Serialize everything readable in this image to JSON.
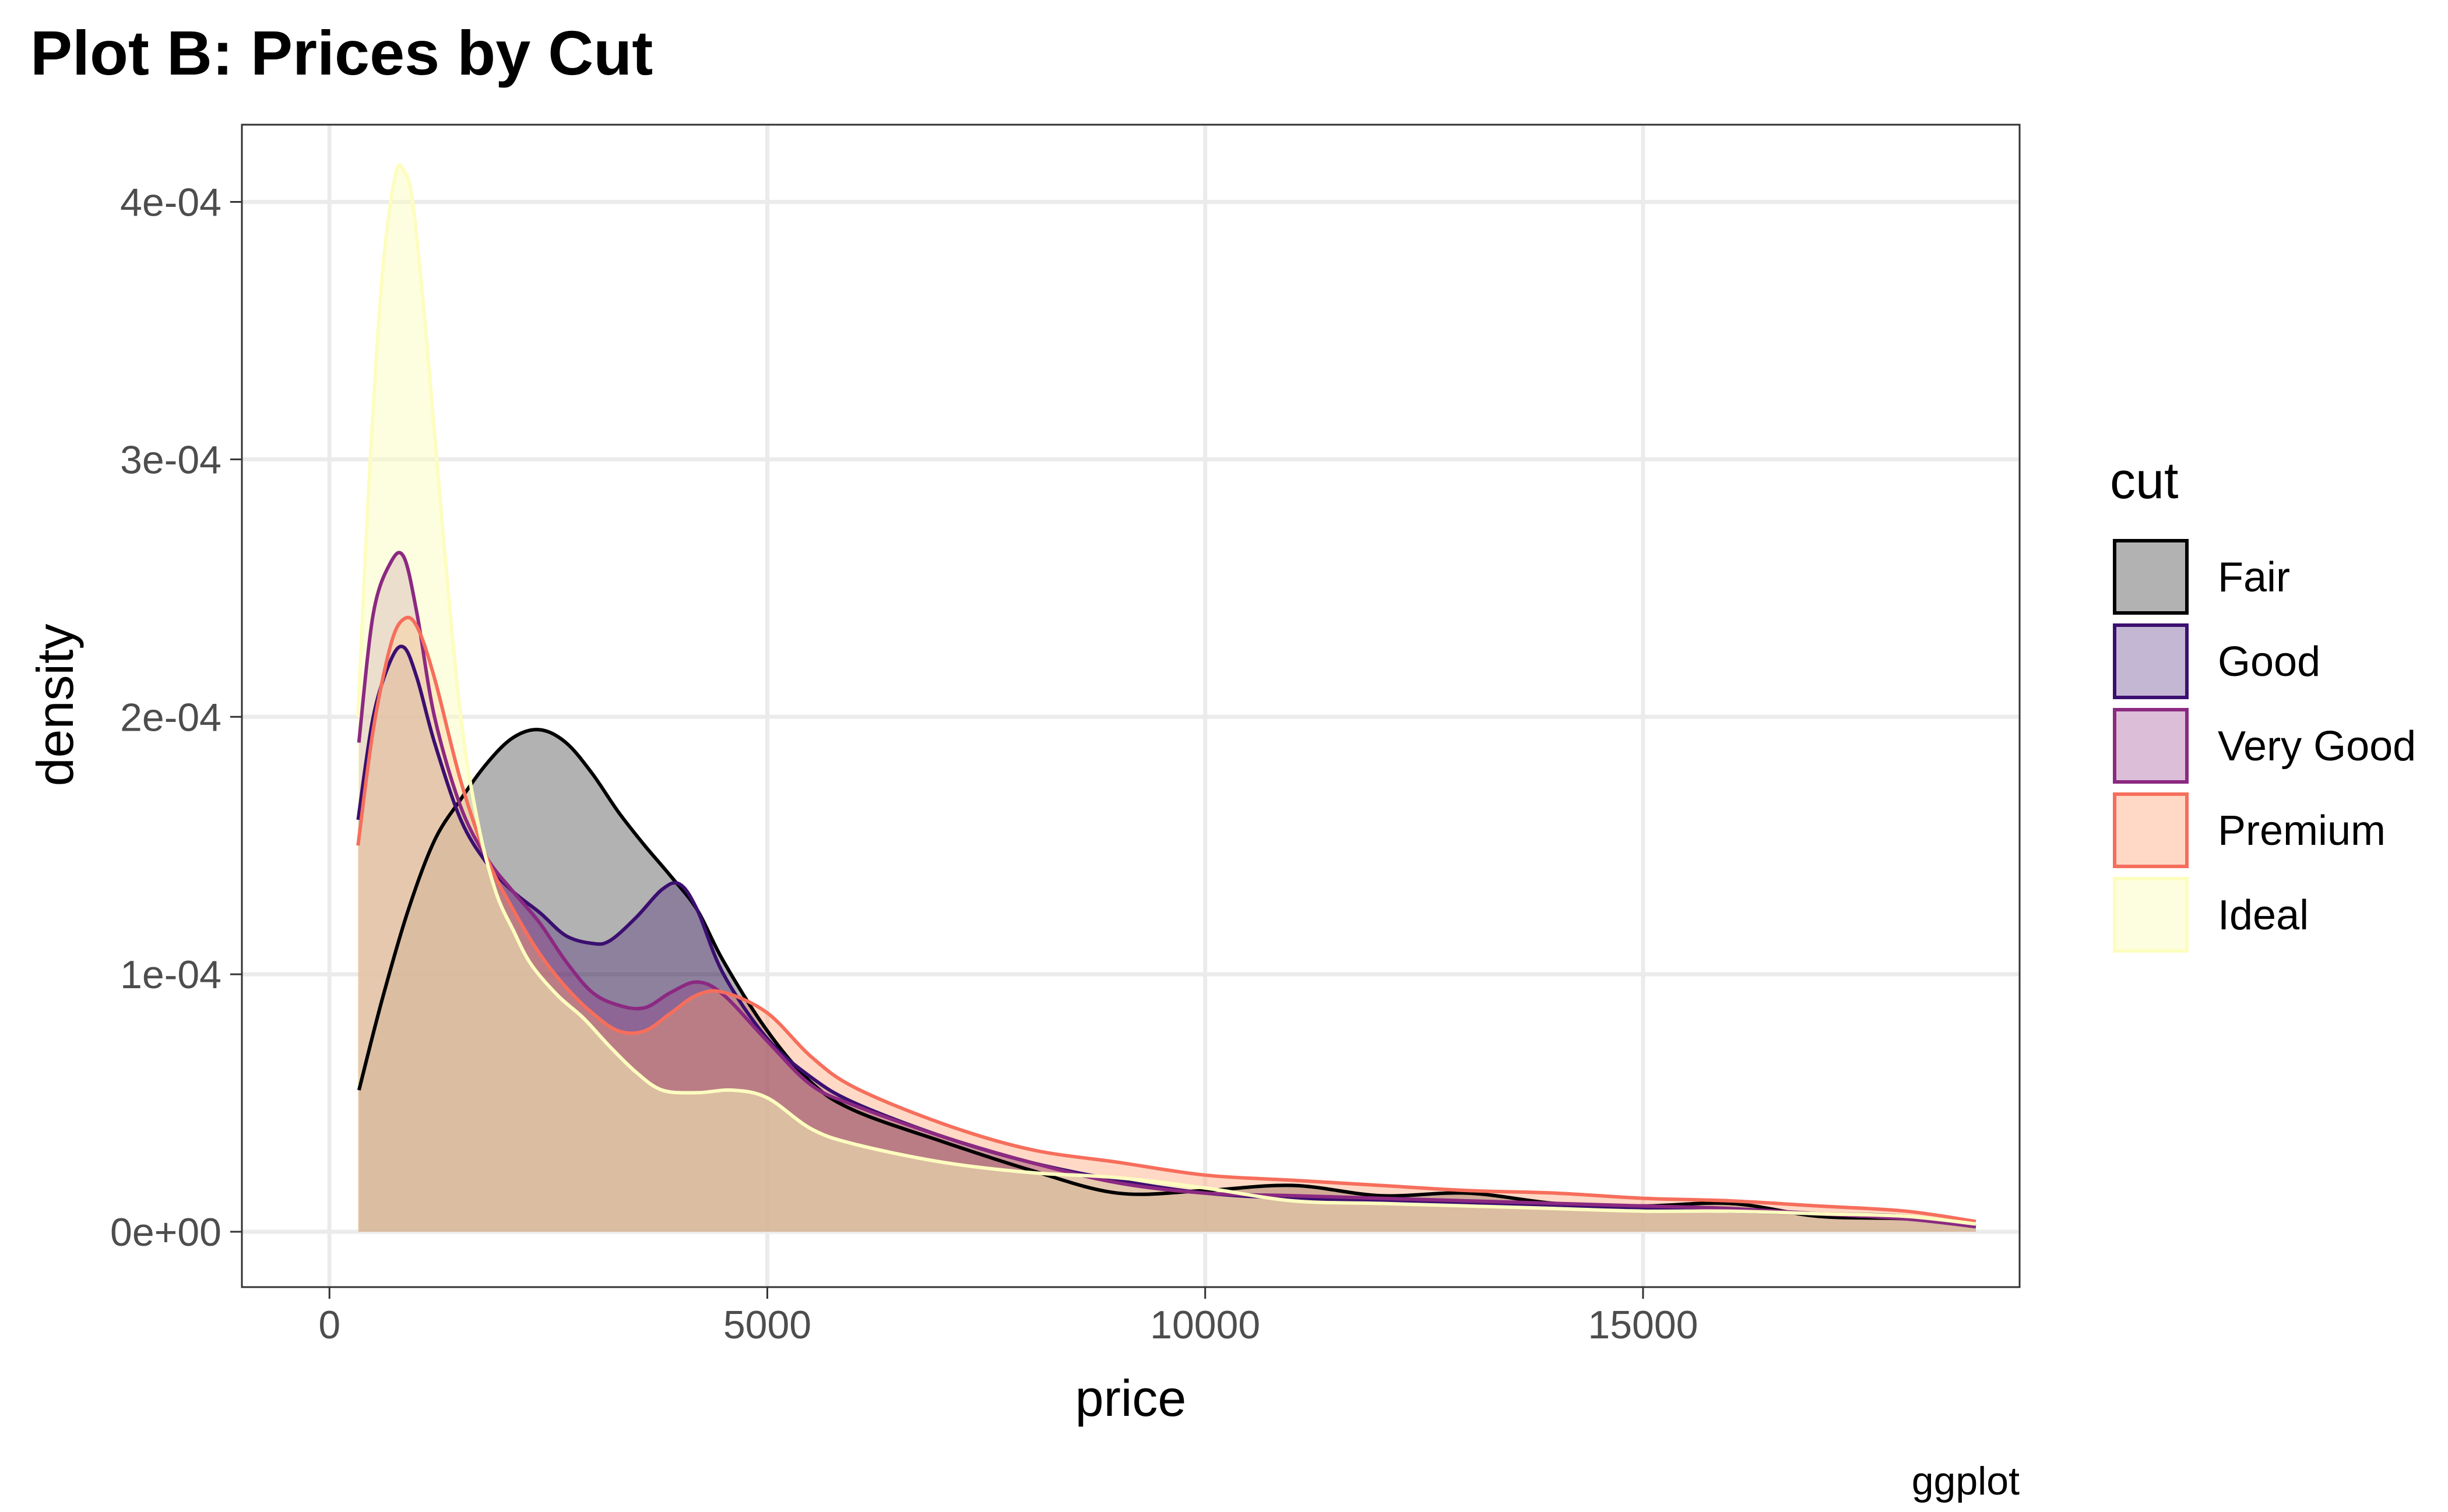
{
  "chart_data": {
    "type": "area",
    "title": "Plot B: Prices by Cut",
    "xlabel": "price",
    "ylabel": "density",
    "caption": "ggplot",
    "xlim": [
      -1000,
      19300
    ],
    "ylim": [
      -2.15e-05,
      0.00043
    ],
    "x_ticks": [
      0,
      5000,
      10000,
      15000
    ],
    "x_tick_labels": [
      "0",
      "5000",
      "10000",
      "15000"
    ],
    "y_ticks": [
      0,
      0.0001,
      0.0002,
      0.0003,
      0.0004
    ],
    "y_tick_labels": [
      "0e+00",
      "1e-04",
      "2e-04",
      "3e-04",
      "4e-04"
    ],
    "grid": true,
    "legend": {
      "title": "cut",
      "placement": "right"
    },
    "series": [
      {
        "name": "Fair",
        "line_color": "#000000",
        "fill_color": "#000000",
        "fill_opacity": 0.3,
        "x": [
          337,
          600,
          900,
          1200,
          1500,
          1800,
          2100,
          2400,
          2700,
          3000,
          3300,
          3600,
          3900,
          4200,
          4500,
          5000,
          5500,
          6000,
          7000,
          8000,
          9000,
          10000,
          11000,
          12000,
          13000,
          14000,
          15000,
          16000,
          17000,
          18000,
          18800
        ],
        "y": [
          5.5e-05,
          9e-05,
          0.000125,
          0.000152,
          0.000168,
          0.000182,
          0.000192,
          0.000195,
          0.00019,
          0.000178,
          0.000163,
          0.00015,
          0.000138,
          0.000125,
          0.000105,
          7.8e-05,
          5.8e-05,
          4.7e-05,
          3.5e-05,
          2.4e-05,
          1.5e-05,
          1.6e-05,
          1.8e-05,
          1.4e-05,
          1.5e-05,
          1.1e-05,
          1e-05,
          1.1e-05,
          6e-06,
          5e-06,
          2e-06
        ]
      },
      {
        "name": "Good",
        "line_color": "#3b0f70",
        "fill_color": "#3b0f70",
        "fill_opacity": 0.3,
        "x": [
          327,
          500,
          700,
          850,
          1000,
          1200,
          1500,
          1800,
          2100,
          2400,
          2700,
          3000,
          3200,
          3500,
          3800,
          4000,
          4200,
          4500,
          5000,
          5500,
          6000,
          7000,
          8000,
          9000,
          10000,
          11000,
          12000,
          13000,
          14000,
          15000,
          16000,
          17000,
          18000,
          18800
        ],
        "y": [
          0.00016,
          0.0002,
          0.000222,
          0.000227,
          0.000215,
          0.00019,
          0.00016,
          0.000143,
          0.000132,
          0.000124,
          0.000115,
          0.000112,
          0.000113,
          0.000122,
          0.000133,
          0.000135,
          0.000125,
          0.0001,
          7.5e-05,
          6e-05,
          5e-05,
          3.7e-05,
          2.7e-05,
          2e-05,
          1.5e-05,
          1.3e-05,
          1.2e-05,
          1.1e-05,
          1e-05,
          9e-06,
          8e-06,
          7e-06,
          6e-06,
          2e-06
        ]
      },
      {
        "name": "Very Good",
        "line_color": "#8c2981",
        "fill_color": "#8c2981",
        "fill_opacity": 0.3,
        "x": [
          336,
          500,
          700,
          850,
          1000,
          1200,
          1500,
          1800,
          2100,
          2400,
          2700,
          3000,
          3300,
          3600,
          3900,
          4200,
          4500,
          5000,
          5500,
          6000,
          7000,
          8000,
          9000,
          10000,
          11000,
          12000,
          13000,
          14000,
          15000,
          16000,
          17000,
          18000,
          18800
        ],
        "y": [
          0.00019,
          0.00024,
          0.00026,
          0.000262,
          0.00024,
          0.0002,
          0.000165,
          0.000145,
          0.000132,
          0.00012,
          0.000105,
          9.3e-05,
          8.8e-05,
          8.7e-05,
          9.3e-05,
          9.7e-05,
          9.2e-05,
          7.4e-05,
          5.7e-05,
          4.9e-05,
          3.7e-05,
          2.7e-05,
          1.9e-05,
          1.5e-05,
          1.4e-05,
          1.3e-05,
          1.2e-05,
          1.1e-05,
          1e-05,
          9e-06,
          7e-06,
          5e-06,
          2e-06
        ]
      },
      {
        "name": "Premium",
        "line_color": "#f66e5c",
        "fill_color": "#fe9f6d",
        "fill_opacity": 0.4,
        "x": [
          326,
          500,
          700,
          850,
          1000,
          1200,
          1500,
          1800,
          2100,
          2400,
          2700,
          3000,
          3300,
          3600,
          3900,
          4200,
          4500,
          5000,
          5500,
          6000,
          7000,
          8000,
          9000,
          10000,
          11000,
          12000,
          13000,
          14000,
          15000,
          16000,
          17000,
          18000,
          18800
        ],
        "y": [
          0.00015,
          0.000195,
          0.000228,
          0.000238,
          0.000235,
          0.000215,
          0.000175,
          0.000145,
          0.000125,
          0.000108,
          9.5e-05,
          8.5e-05,
          7.8e-05,
          7.8e-05,
          8.5e-05,
          9.2e-05,
          9.3e-05,
          8.5e-05,
          6.8e-05,
          5.6e-05,
          4.2e-05,
          3.2e-05,
          2.7e-05,
          2.2e-05,
          2e-05,
          1.8e-05,
          1.6e-05,
          1.5e-05,
          1.3e-05,
          1.2e-05,
          1e-05,
          8e-06,
          4e-06
        ]
      },
      {
        "name": "Ideal",
        "line_color": "#fcfdbf",
        "fill_color": "#fcfdbf",
        "fill_opacity": 0.5,
        "x": [
          326,
          450,
          600,
          750,
          850,
          950,
          1100,
          1300,
          1500,
          1700,
          1900,
          2100,
          2300,
          2600,
          2900,
          3200,
          3500,
          3800,
          4200,
          4600,
          5000,
          5500,
          6000,
          7000,
          8000,
          9000,
          10000,
          11000,
          12000,
          13000,
          14000,
          15000,
          16000,
          17000,
          18000,
          18800
        ],
        "y": [
          0.0002,
          0.00029,
          0.00037,
          0.00041,
          0.000412,
          0.0004,
          0.00035,
          0.00027,
          0.0002,
          0.000158,
          0.000132,
          0.000117,
          0.000104,
          9.2e-05,
          8.3e-05,
          7.2e-05,
          6.2e-05,
          5.5e-05,
          5.4e-05,
          5.5e-05,
          5.2e-05,
          4e-05,
          3.4e-05,
          2.7e-05,
          2.3e-05,
          2.1e-05,
          1.7e-05,
          1.2e-05,
          1.1e-05,
          1e-05,
          9e-06,
          8e-06,
          8e-06,
          7e-06,
          6e-06,
          3e-06
        ]
      }
    ]
  }
}
